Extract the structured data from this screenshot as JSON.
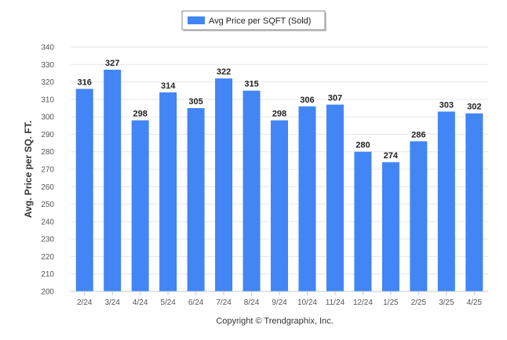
{
  "chart_data": {
    "type": "bar",
    "categories": [
      "2/24",
      "3/24",
      "4/24",
      "5/24",
      "6/24",
      "7/24",
      "8/24",
      "9/24",
      "10/24",
      "11/24",
      "12/24",
      "1/25",
      "2/25",
      "3/25",
      "4/25"
    ],
    "series": [
      {
        "name": "Avg Price per SQFT (Sold)",
        "color": "#4285F4",
        "values": [
          316,
          327,
          298,
          314,
          305,
          322,
          315,
          298,
          306,
          307,
          280,
          274,
          286,
          303,
          302
        ]
      }
    ],
    "ylabel": "Avg. Price per SQ. FT.",
    "xlabel": "",
    "ylim": [
      200,
      340
    ],
    "yticks": [
      200,
      210,
      220,
      230,
      240,
      250,
      260,
      270,
      280,
      290,
      300,
      310,
      320,
      330,
      340
    ],
    "grid": true,
    "legend_position": "top-center",
    "data_labels": true
  },
  "credit": "Copyright © Trendgraphix, Inc."
}
